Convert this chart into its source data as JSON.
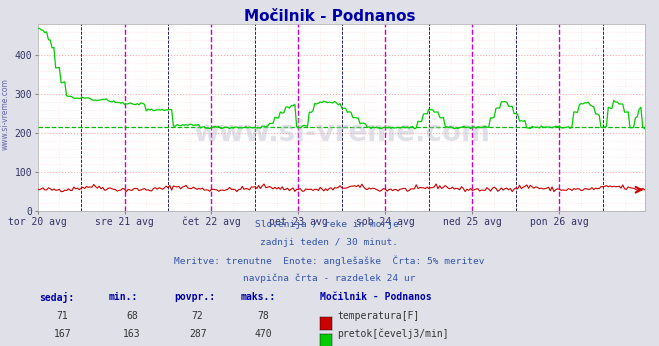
{
  "title": "Močilnik - Podnanos",
  "bg_color": "#dfe0e8",
  "plot_bg_color": "#ffffff",
  "grid_color_major": "#ffaaaa",
  "grid_color_minor": "#ffdddd",
  "vline_color_day": "#cc00cc",
  "vline_color_12h": "#000066",
  "avg_line_color": "#00bb00",
  "temp_color": "#cc0000",
  "flow_color": "#00cc00",
  "ylim": [
    0,
    480
  ],
  "yticks": [
    0,
    100,
    200,
    300,
    400
  ],
  "xtick_labels": [
    "tor 20 avg",
    "sre 21 avg",
    "čet 22 avg",
    "pet 23 avg",
    "sob 24 avg",
    "ned 25 avg",
    "pon 26 avg"
  ],
  "xtick_positions": [
    0,
    48,
    96,
    144,
    192,
    240,
    288
  ],
  "subtitle_lines": [
    "Slovenija / reke in morje.",
    "zadnji teden / 30 minut.",
    "Meritve: trenutne  Enote: anglešaške  Črta: 5% meritev",
    "navpična črta - razdelek 24 ur"
  ],
  "table_headers": [
    "sedaj:",
    "min.:",
    "povpr.:",
    "maks.:"
  ],
  "station_label": "Močilnik - Podnanos",
  "temp_row": [
    "71",
    "68",
    "72",
    "78"
  ],
  "flow_row": [
    "167",
    "163",
    "287",
    "470"
  ],
  "temp_label": "temperatura[F]",
  "flow_label": "pretok[čevelj3/min]",
  "watermark": "www.si-vreme.com",
  "sidebar_text": "www.si-vreme.com",
  "arrow_color": "#cc0000",
  "flow_avg": 215
}
